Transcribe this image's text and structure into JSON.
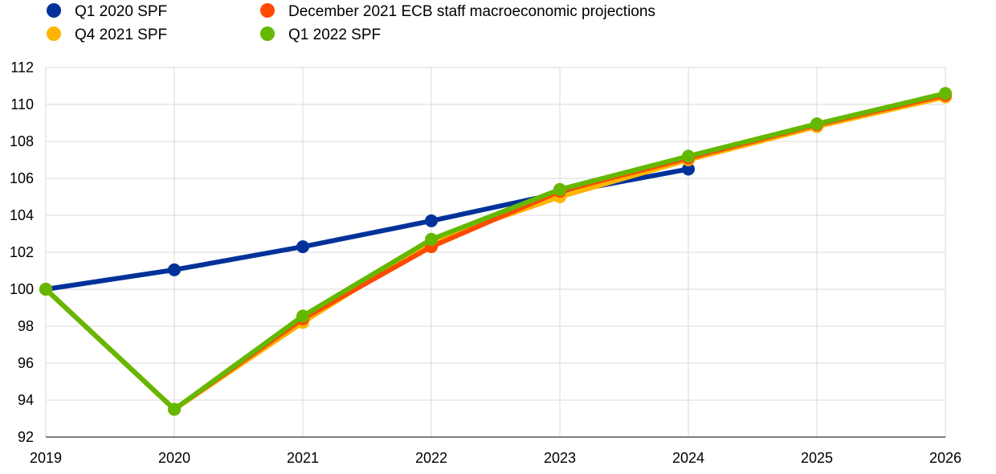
{
  "chart_data": {
    "type": "line",
    "title": "",
    "xlabel": "",
    "ylabel": "",
    "x": [
      "2019",
      "2020",
      "2021",
      "2022",
      "2023",
      "2024",
      "2025",
      "2026"
    ],
    "ylim": [
      92,
      112
    ],
    "yticks": [
      "92",
      "94",
      "96",
      "98",
      "100",
      "102",
      "104",
      "106",
      "108",
      "110",
      "112"
    ],
    "grid": true,
    "legend_position": "top-left",
    "series": [
      {
        "name": "Q1 2020 SPF",
        "color": "#003299",
        "values": [
          100,
          101.05,
          102.3,
          103.7,
          105.2,
          106.5,
          null,
          null
        ]
      },
      {
        "name": "Q4 2021 SPF",
        "color": "#FFB400",
        "values": [
          100,
          93.5,
          98.2,
          102.6,
          105.0,
          107.0,
          108.8,
          110.4
        ]
      },
      {
        "name": "December 2021 ECB staff macroeconomic projections",
        "color": "#FF4B00",
        "values": [
          100,
          93.5,
          98.4,
          102.3,
          105.3,
          107.1,
          108.9,
          110.5
        ]
      },
      {
        "name": "Q1 2022 SPF",
        "color": "#65B800",
        "values": [
          100,
          93.5,
          98.55,
          102.7,
          105.4,
          107.2,
          108.95,
          110.6
        ]
      }
    ]
  }
}
